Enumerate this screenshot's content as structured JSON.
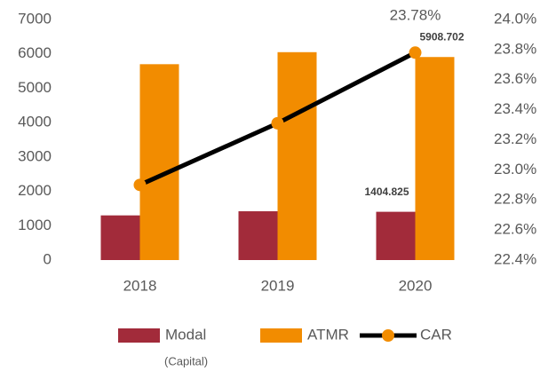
{
  "chart_data": {
    "type": "bar",
    "categories": [
      "2018",
      "2019",
      "2020"
    ],
    "series": [
      {
        "name": "Modal",
        "color": "#a22b3a",
        "values": [
          1300,
          1420,
          1404.825
        ],
        "value_labels": [
          null,
          null,
          "1404.825"
        ]
      },
      {
        "name": "ATMR",
        "color": "#f28c00",
        "values": [
          5700,
          6050,
          5908.702
        ],
        "value_labels": [
          null,
          null,
          "5908.702"
        ]
      },
      {
        "name": "CAR",
        "type": "line",
        "axis": "y2",
        "color": "#000000",
        "marker_color": "#f28c00",
        "values": [
          22.9,
          23.31,
          23.78
        ],
        "value_labels": [
          null,
          null,
          "23.78%"
        ]
      }
    ],
    "ylim": [
      0,
      7000
    ],
    "yticks": [
      0,
      1000,
      2000,
      3000,
      4000,
      5000,
      6000,
      7000
    ],
    "y2lim": [
      22.4,
      24.0
    ],
    "y2ticks": [
      {
        "value": 22.4,
        "label": "22.4%"
      },
      {
        "value": 22.6,
        "label": "22.6%"
      },
      {
        "value": 22.8,
        "label": "22.8%"
      },
      {
        "value": 23.0,
        "label": "23.0%"
      },
      {
        "value": 23.2,
        "label": "23.2%"
      },
      {
        "value": 23.4,
        "label": "23.4%"
      },
      {
        "value": 23.6,
        "label": "23.6%"
      },
      {
        "value": 23.8,
        "label": "23.8%"
      },
      {
        "value": 24.0,
        "label": "24.0%"
      }
    ],
    "annotation": "(Capital)",
    "legend": "bottom"
  }
}
